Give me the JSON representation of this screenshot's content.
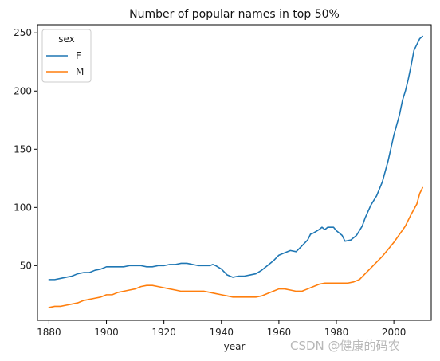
{
  "chart_data": {
    "type": "line",
    "title": "Number of popular names in top 50%",
    "xlabel": "year",
    "ylabel": "",
    "xlim": [
      1876,
      2013
    ],
    "ylim": [
      3,
      257
    ],
    "x_ticks": [
      1880,
      1900,
      1920,
      1940,
      1960,
      1980,
      2000
    ],
    "y_ticks": [
      50,
      100,
      150,
      200,
      250
    ],
    "grid": false,
    "legend": {
      "title": "sex",
      "placement": "top-left"
    },
    "series": [
      {
        "name": "F",
        "color": "#1f77b4",
        "points": [
          [
            1880,
            38
          ],
          [
            1882,
            38
          ],
          [
            1884,
            39
          ],
          [
            1886,
            40
          ],
          [
            1888,
            41
          ],
          [
            1890,
            43
          ],
          [
            1892,
            44
          ],
          [
            1894,
            44
          ],
          [
            1896,
            46
          ],
          [
            1898,
            47
          ],
          [
            1900,
            49
          ],
          [
            1902,
            49
          ],
          [
            1904,
            49
          ],
          [
            1906,
            49
          ],
          [
            1908,
            50
          ],
          [
            1910,
            50
          ],
          [
            1912,
            50
          ],
          [
            1914,
            49
          ],
          [
            1916,
            49
          ],
          [
            1918,
            50
          ],
          [
            1920,
            50
          ],
          [
            1922,
            51
          ],
          [
            1924,
            51
          ],
          [
            1926,
            52
          ],
          [
            1928,
            52
          ],
          [
            1930,
            51
          ],
          [
            1932,
            50
          ],
          [
            1934,
            50
          ],
          [
            1936,
            50
          ],
          [
            1937,
            51
          ],
          [
            1938,
            50
          ],
          [
            1940,
            47
          ],
          [
            1942,
            42
          ],
          [
            1944,
            40
          ],
          [
            1946,
            41
          ],
          [
            1948,
            41
          ],
          [
            1950,
            42
          ],
          [
            1952,
            43
          ],
          [
            1954,
            46
          ],
          [
            1956,
            50
          ],
          [
            1958,
            54
          ],
          [
            1960,
            59
          ],
          [
            1962,
            61
          ],
          [
            1964,
            63
          ],
          [
            1966,
            62
          ],
          [
            1968,
            67
          ],
          [
            1970,
            72
          ],
          [
            1971,
            77
          ],
          [
            1972,
            78
          ],
          [
            1974,
            81
          ],
          [
            1975,
            83
          ],
          [
            1976,
            81
          ],
          [
            1977,
            83
          ],
          [
            1979,
            83
          ],
          [
            1980,
            80
          ],
          [
            1982,
            76
          ],
          [
            1983,
            71
          ],
          [
            1985,
            72
          ],
          [
            1987,
            76
          ],
          [
            1989,
            84
          ],
          [
            1990,
            91
          ],
          [
            1992,
            102
          ],
          [
            1994,
            110
          ],
          [
            1996,
            122
          ],
          [
            1998,
            140
          ],
          [
            2000,
            162
          ],
          [
            2002,
            180
          ],
          [
            2003,
            192
          ],
          [
            2004,
            200
          ],
          [
            2005,
            210
          ],
          [
            2006,
            222
          ],
          [
            2007,
            235
          ],
          [
            2008,
            240
          ],
          [
            2009,
            245
          ],
          [
            2010,
            247
          ]
        ]
      },
      {
        "name": "M",
        "color": "#ff7f0e",
        "points": [
          [
            1880,
            14
          ],
          [
            1882,
            15
          ],
          [
            1884,
            15
          ],
          [
            1886,
            16
          ],
          [
            1888,
            17
          ],
          [
            1890,
            18
          ],
          [
            1892,
            20
          ],
          [
            1894,
            21
          ],
          [
            1896,
            22
          ],
          [
            1898,
            23
          ],
          [
            1900,
            25
          ],
          [
            1902,
            25
          ],
          [
            1904,
            27
          ],
          [
            1906,
            28
          ],
          [
            1908,
            29
          ],
          [
            1910,
            30
          ],
          [
            1912,
            32
          ],
          [
            1914,
            33
          ],
          [
            1916,
            33
          ],
          [
            1918,
            32
          ],
          [
            1920,
            31
          ],
          [
            1922,
            30
          ],
          [
            1924,
            29
          ],
          [
            1926,
            28
          ],
          [
            1928,
            28
          ],
          [
            1930,
            28
          ],
          [
            1932,
            28
          ],
          [
            1934,
            28
          ],
          [
            1936,
            27
          ],
          [
            1938,
            26
          ],
          [
            1940,
            25
          ],
          [
            1942,
            24
          ],
          [
            1944,
            23
          ],
          [
            1946,
            23
          ],
          [
            1948,
            23
          ],
          [
            1950,
            23
          ],
          [
            1952,
            23
          ],
          [
            1954,
            24
          ],
          [
            1956,
            26
          ],
          [
            1958,
            28
          ],
          [
            1960,
            30
          ],
          [
            1962,
            30
          ],
          [
            1964,
            29
          ],
          [
            1966,
            28
          ],
          [
            1968,
            28
          ],
          [
            1970,
            30
          ],
          [
            1972,
            32
          ],
          [
            1974,
            34
          ],
          [
            1976,
            35
          ],
          [
            1978,
            35
          ],
          [
            1980,
            35
          ],
          [
            1982,
            35
          ],
          [
            1984,
            35
          ],
          [
            1986,
            36
          ],
          [
            1988,
            38
          ],
          [
            1990,
            43
          ],
          [
            1992,
            48
          ],
          [
            1994,
            53
          ],
          [
            1996,
            58
          ],
          [
            1998,
            64
          ],
          [
            2000,
            70
          ],
          [
            2002,
            77
          ],
          [
            2004,
            84
          ],
          [
            2006,
            94
          ],
          [
            2008,
            103
          ],
          [
            2009,
            112
          ],
          [
            2010,
            117
          ]
        ]
      }
    ]
  },
  "watermark": "CSDN @健康的码农"
}
